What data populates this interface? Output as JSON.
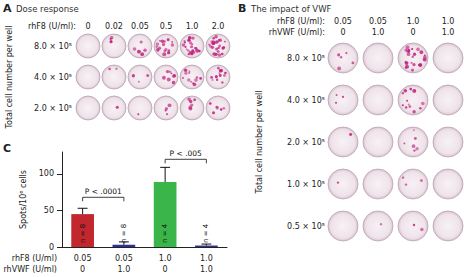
{
  "panel_a": {
    "letter": "A",
    "title": "Dose response",
    "y_label": "Total cell number per well",
    "column_header": "rhF8 (U/ml):",
    "columns": [
      "0",
      "0.02",
      "0.05",
      "0.5",
      "1.0",
      "2.0"
    ],
    "rows": [
      "8.0 × 10⁵",
      "4.0 × 10⁵",
      "2.0 × 10⁵"
    ]
  },
  "panel_b": {
    "letter": "B",
    "title": "The impact of VWF",
    "y_label": "Total cell number per well",
    "column_headers": [
      {
        "label": "rhF8 (U/ml):",
        "values": [
          "0.05",
          "0.05",
          "1.0",
          "1.0"
        ]
      },
      {
        "label": "rhVWF (U/ml):",
        "values": [
          "0",
          "1.0",
          "0",
          "1.0"
        ]
      }
    ],
    "rows": [
      "8.0 × 10⁵",
      "4.0 × 10⁵",
      "2.0 × 10⁵",
      "1.0 × 10⁵",
      "0.5 × 10⁵"
    ]
  },
  "chart_data": {
    "type": "bar",
    "letter": "C",
    "y_label": "Spots/10⁶ cells",
    "x_rows": [
      {
        "label": "rhF8 (U/ml)",
        "values": [
          "0.05",
          "0.05",
          "1.0",
          "1.0"
        ]
      },
      {
        "label": "rhVWF (U/ml)",
        "values": [
          "0",
          "1.0",
          "0",
          "1.0"
        ]
      }
    ],
    "values": [
      45,
      3,
      89,
      2
    ],
    "errors": [
      8,
      4,
      20,
      2
    ],
    "colors": [
      "#c1272d",
      "#2e3192",
      "#39b54a",
      "#2e3192"
    ],
    "bar_labels": [
      "n = 8",
      "n = 8",
      "n = 4",
      "n = 4"
    ],
    "comparisons": [
      {
        "from": 0,
        "to": 1,
        "y": 68,
        "text": "P < .0001"
      },
      {
        "from": 2,
        "to": 3,
        "y": 120,
        "text": "P < .005"
      }
    ],
    "ylim": [
      0,
      130
    ],
    "yticks": [
      0,
      50,
      100
    ],
    "grid": false
  }
}
